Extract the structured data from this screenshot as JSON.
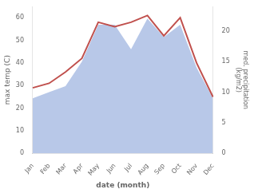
{
  "chart_data": {
    "type": "line",
    "xlabel": "date (month)",
    "ylabel": "max temp (C)",
    "y2label": "med. precipitation\n(kg/m2)",
    "categories": [
      "Jan",
      "Feb",
      "Mar",
      "Apr",
      "May",
      "Jun",
      "Jul",
      "Aug",
      "Sep",
      "Oct",
      "Nov",
      "Dec"
    ],
    "series": [
      {
        "type": "area",
        "axis": "y2",
        "color": "#b8c8e8",
        "values": [
          9,
          10,
          11,
          15,
          21,
          21,
          17,
          22,
          19,
          21,
          14,
          9
        ]
      },
      {
        "type": "line",
        "color": "#c0504d",
        "values": [
          29,
          31,
          36,
          42,
          58,
          56,
          58,
          61,
          52,
          60,
          40,
          25
        ]
      }
    ],
    "ylim": [
      0,
      65
    ],
    "yticks": [
      0,
      10,
      20,
      30,
      40,
      50,
      60
    ],
    "y2lim": [
      0,
      24
    ],
    "y2ticks": [
      0,
      5,
      10,
      15,
      20
    ],
    "grid": false
  }
}
